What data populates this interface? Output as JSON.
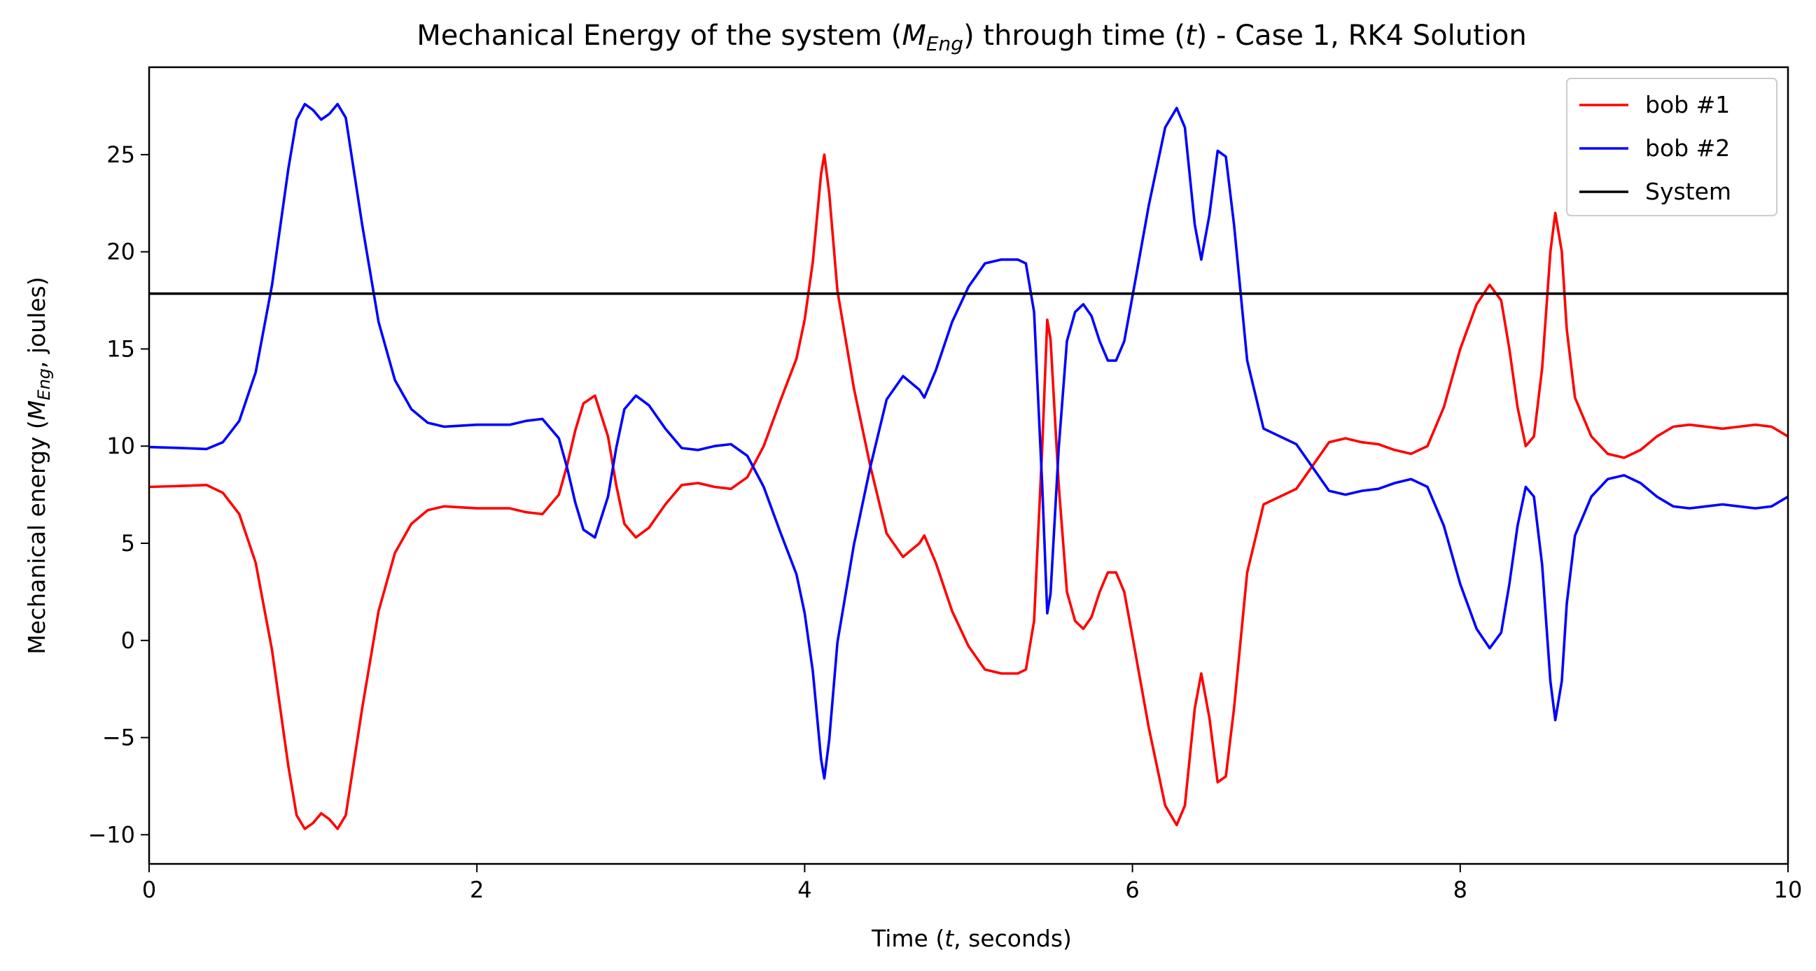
{
  "chart_data": {
    "type": "line",
    "title_parts": {
      "prefix": "Mechanical Energy of the system (",
      "sym": "M",
      "sub": "Eng",
      "mid": ") through time (",
      "t": "t",
      "suffix": ") - Case 1, RK4 Solution"
    },
    "xlabel_parts": {
      "prefix": "Time (",
      "t": "t",
      "suffix": ", seconds)"
    },
    "ylabel_parts": {
      "prefix": "Mechanical energy (",
      "sym": "M",
      "sub": "Eng",
      "suffix": ", joules)"
    },
    "xlim": [
      0,
      10
    ],
    "ylim": [
      -11.5,
      29.5
    ],
    "xticks": [
      0,
      2,
      4,
      6,
      8,
      10
    ],
    "xtick_labels": [
      "0",
      "2",
      "4",
      "6",
      "8",
      "10"
    ],
    "yticks": [
      -10,
      -5,
      0,
      5,
      10,
      15,
      20,
      25
    ],
    "ytick_labels": [
      "−10",
      "−5",
      "0",
      "5",
      "10",
      "15",
      "20",
      "25"
    ],
    "grid": false,
    "legend_position": "top-right",
    "series": [
      {
        "name": "bob #1",
        "color": "#ff0000",
        "x": [
          0,
          0.2,
          0.35,
          0.45,
          0.55,
          0.65,
          0.75,
          0.85,
          0.9,
          0.95,
          1.0,
          1.05,
          1.1,
          1.15,
          1.2,
          1.3,
          1.4,
          1.5,
          1.6,
          1.7,
          1.8,
          2.0,
          2.2,
          2.3,
          2.4,
          2.5,
          2.55,
          2.6,
          2.65,
          2.72,
          2.8,
          2.85,
          2.9,
          2.97,
          3.05,
          3.15,
          3.25,
          3.35,
          3.45,
          3.55,
          3.65,
          3.75,
          3.85,
          3.95,
          4.0,
          4.05,
          4.1,
          4.12,
          4.15,
          4.2,
          4.3,
          4.4,
          4.5,
          4.6,
          4.7,
          4.73,
          4.8,
          4.9,
          5.0,
          5.1,
          5.2,
          5.3,
          5.35,
          5.4,
          5.45,
          5.48,
          5.5,
          5.55,
          5.6,
          5.65,
          5.7,
          5.75,
          5.8,
          5.85,
          5.9,
          5.95,
          6.0,
          6.1,
          6.2,
          6.27,
          6.32,
          6.38,
          6.42,
          6.47,
          6.52,
          6.57,
          6.62,
          6.7,
          6.8,
          6.9,
          7.0,
          7.1,
          7.2,
          7.3,
          7.4,
          7.5,
          7.6,
          7.7,
          7.8,
          7.9,
          8.0,
          8.1,
          8.18,
          8.25,
          8.3,
          8.35,
          8.4,
          8.45,
          8.5,
          8.55,
          8.58,
          8.62,
          8.65,
          8.7,
          8.8,
          8.9,
          9.0,
          9.1,
          9.2,
          9.3,
          9.4,
          9.5,
          9.6,
          9.7,
          9.8,
          9.9,
          10.0
        ],
        "y": [
          7.9,
          7.95,
          8.0,
          7.6,
          6.5,
          4.0,
          -0.5,
          -6.5,
          -9.0,
          -9.7,
          -9.4,
          -8.9,
          -9.2,
          -9.7,
          -9.0,
          -3.5,
          1.5,
          4.5,
          6.0,
          6.7,
          6.9,
          6.8,
          6.8,
          6.6,
          6.5,
          7.5,
          9.0,
          10.8,
          12.2,
          12.6,
          10.5,
          8.0,
          6.0,
          5.3,
          5.8,
          7.0,
          8.0,
          8.1,
          7.9,
          7.8,
          8.4,
          10.0,
          12.3,
          14.5,
          16.5,
          19.5,
          24.0,
          25.0,
          23.0,
          18.0,
          13.0,
          9.0,
          5.5,
          4.3,
          5.0,
          5.4,
          4.0,
          1.5,
          -0.3,
          -1.5,
          -1.7,
          -1.7,
          -1.5,
          1.0,
          10.0,
          16.5,
          15.5,
          8.0,
          2.5,
          1.0,
          0.6,
          1.2,
          2.5,
          3.5,
          3.5,
          2.5,
          0.2,
          -4.5,
          -8.5,
          -9.5,
          -8.5,
          -3.5,
          -1.7,
          -4.0,
          -7.3,
          -7.0,
          -3.5,
          3.5,
          7.0,
          7.4,
          7.8,
          9.0,
          10.2,
          10.4,
          10.2,
          10.1,
          9.8,
          9.6,
          10.0,
          12.0,
          15.0,
          17.3,
          18.3,
          17.5,
          15.0,
          12.0,
          10.0,
          10.5,
          14.0,
          20.0,
          22.0,
          20.0,
          16.0,
          12.5,
          10.5,
          9.6,
          9.4,
          9.8,
          10.5,
          11.0,
          11.1,
          11.0,
          10.9,
          11.0,
          11.1,
          11.0,
          10.5
        ]
      },
      {
        "name": "bob #2",
        "color": "#0000ff",
        "x": [
          0,
          0.2,
          0.35,
          0.45,
          0.55,
          0.65,
          0.75,
          0.85,
          0.9,
          0.95,
          1.0,
          1.05,
          1.1,
          1.15,
          1.2,
          1.3,
          1.4,
          1.5,
          1.6,
          1.7,
          1.8,
          2.0,
          2.2,
          2.3,
          2.4,
          2.5,
          2.55,
          2.6,
          2.65,
          2.72,
          2.8,
          2.85,
          2.9,
          2.97,
          3.05,
          3.15,
          3.25,
          3.35,
          3.45,
          3.55,
          3.65,
          3.75,
          3.85,
          3.95,
          4.0,
          4.05,
          4.1,
          4.12,
          4.15,
          4.2,
          4.3,
          4.4,
          4.5,
          4.6,
          4.7,
          4.73,
          4.8,
          4.9,
          5.0,
          5.1,
          5.2,
          5.3,
          5.35,
          5.4,
          5.45,
          5.48,
          5.5,
          5.55,
          5.6,
          5.65,
          5.7,
          5.75,
          5.8,
          5.85,
          5.9,
          5.95,
          6.0,
          6.1,
          6.2,
          6.27,
          6.32,
          6.38,
          6.42,
          6.47,
          6.52,
          6.57,
          6.62,
          6.7,
          6.8,
          6.9,
          7.0,
          7.1,
          7.2,
          7.3,
          7.4,
          7.5,
          7.6,
          7.7,
          7.8,
          7.9,
          8.0,
          8.1,
          8.18,
          8.25,
          8.3,
          8.35,
          8.4,
          8.45,
          8.5,
          8.55,
          8.58,
          8.62,
          8.65,
          8.7,
          8.8,
          8.9,
          9.0,
          9.1,
          9.2,
          9.3,
          9.4,
          9.5,
          9.6,
          9.7,
          9.8,
          9.9,
          10.0
        ],
        "y": [
          9.95,
          9.9,
          9.85,
          10.2,
          11.3,
          13.8,
          18.3,
          24.3,
          26.8,
          27.6,
          27.3,
          26.8,
          27.1,
          27.6,
          26.9,
          21.4,
          16.4,
          13.4,
          11.9,
          11.2,
          11.0,
          11.1,
          11.1,
          11.3,
          11.4,
          10.4,
          8.9,
          7.1,
          5.7,
          5.3,
          7.4,
          9.9,
          11.9,
          12.6,
          12.1,
          10.9,
          9.9,
          9.8,
          10.0,
          10.1,
          9.5,
          7.9,
          5.6,
          3.4,
          1.4,
          -1.6,
          -6.1,
          -7.1,
          -5.1,
          -0.1,
          4.9,
          8.9,
          12.4,
          13.6,
          12.9,
          12.5,
          13.9,
          16.4,
          18.2,
          19.4,
          19.6,
          19.6,
          19.4,
          16.9,
          7.9,
          1.4,
          2.4,
          9.9,
          15.4,
          16.9,
          17.3,
          16.7,
          15.4,
          14.4,
          14.4,
          15.4,
          17.7,
          22.4,
          26.4,
          27.4,
          26.4,
          21.4,
          19.6,
          21.9,
          25.2,
          24.9,
          21.4,
          14.4,
          10.9,
          10.5,
          10.1,
          8.9,
          7.7,
          7.5,
          7.7,
          7.8,
          8.1,
          8.3,
          7.9,
          5.9,
          2.9,
          0.6,
          -0.4,
          0.4,
          2.9,
          5.9,
          7.9,
          7.4,
          3.9,
          -2.1,
          -4.1,
          -2.1,
          1.9,
          5.4,
          7.4,
          8.3,
          8.5,
          8.1,
          7.4,
          6.9,
          6.8,
          6.9,
          7.0,
          6.9,
          6.8,
          6.9,
          7.4
        ]
      },
      {
        "name": "System",
        "color": "#000000",
        "x": [
          0,
          10
        ],
        "y": [
          17.85,
          17.85
        ]
      }
    ]
  }
}
